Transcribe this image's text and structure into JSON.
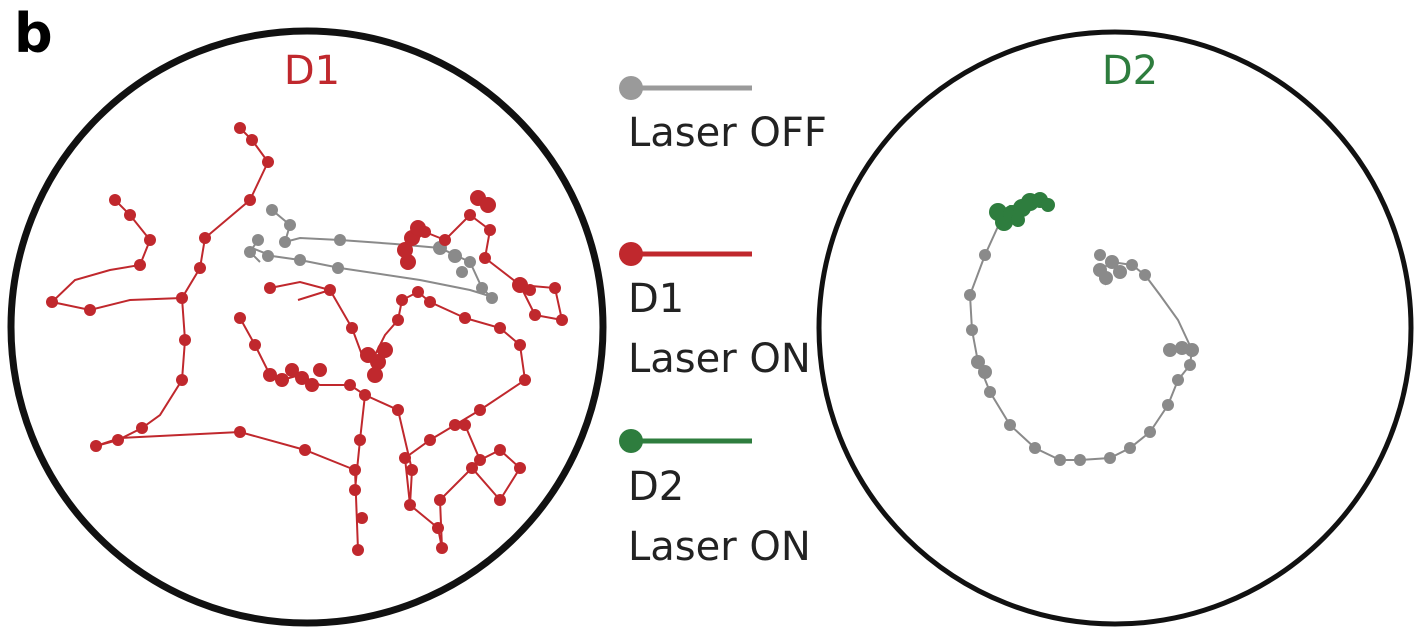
{
  "panel_label": "b",
  "colors": {
    "off": "#8a8a8a",
    "d1": "#c0282d",
    "d2": "#2e7d3e",
    "outline": "#111111",
    "text": "#222222"
  },
  "arenas": [
    {
      "id": "d1",
      "title": "D1",
      "title_color": "#c0282d"
    },
    {
      "id": "d2",
      "title": "D2",
      "title_color": "#2e7d3e"
    }
  ],
  "legend": [
    {
      "id": "off",
      "color": "#9a9a9a",
      "lines": [
        "Laser OFF"
      ]
    },
    {
      "id": "d1-on",
      "color": "#c0282d",
      "lines": [
        "D1",
        "Laser ON"
      ]
    },
    {
      "id": "d2-on",
      "color": "#2e7d3e",
      "lines": [
        "D2",
        "Laser ON"
      ]
    }
  ]
}
